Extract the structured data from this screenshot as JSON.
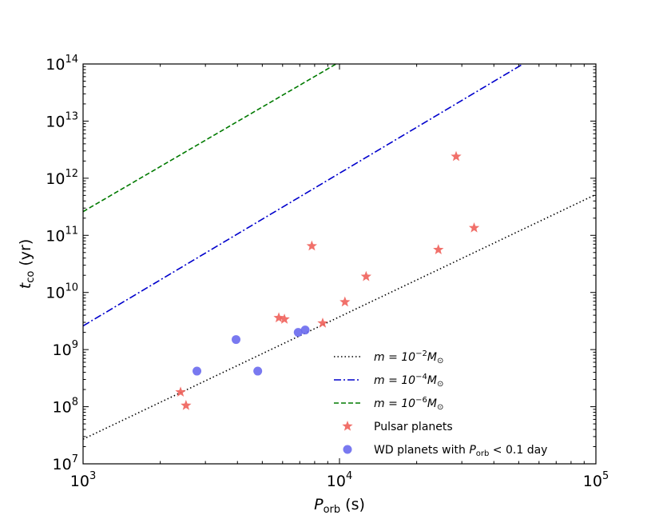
{
  "chart_data": {
    "type": "scatter",
    "title": "",
    "xscale": "log",
    "yscale": "log",
    "xlim": [
      1000,
      100000
    ],
    "ylim": [
      10000000,
      100000000000000
    ],
    "x_ticks": [
      {
        "value": 1000,
        "base": "10",
        "exp": "3"
      },
      {
        "value": 10000,
        "base": "10",
        "exp": "4"
      },
      {
        "value": 100000,
        "base": "10",
        "exp": "5"
      }
    ],
    "y_ticks": [
      {
        "value": 10000000,
        "base": "10",
        "exp": "7"
      },
      {
        "value": 100000000,
        "base": "10",
        "exp": "8"
      },
      {
        "value": 1000000000,
        "base": "10",
        "exp": "9"
      },
      {
        "value": 10000000000,
        "base": "10",
        "exp": "10"
      },
      {
        "value": 100000000000,
        "base": "10",
        "exp": "11"
      },
      {
        "value": 1000000000000,
        "base": "10",
        "exp": "12"
      },
      {
        "value": 10000000000000,
        "base": "10",
        "exp": "13"
      },
      {
        "value": 100000000000000,
        "base": "10",
        "exp": "14"
      }
    ],
    "xlabel": {
      "main": "P",
      "sub": "orb",
      "unit": " (s)"
    },
    "ylabel": {
      "main": "t",
      "sub": "co",
      "unit": " (yr)"
    },
    "legend_position": "lower-right",
    "lines": [
      {
        "name": "m_1e-2",
        "legend_main": "m = 10",
        "legend_exp": "−2",
        "legend_after": "M",
        "color": "#000000",
        "dash": "1.5,3",
        "points": [
          [
            1000,
            27000000
          ],
          [
            100000,
            520000000000
          ]
        ]
      },
      {
        "name": "m_1e-4",
        "legend_main": "m = 10",
        "legend_exp": "−4",
        "legend_after": "M",
        "color": "#0000cc",
        "dash": "9,3,2,3",
        "points": [
          [
            1000,
            2600000000
          ],
          [
            52000,
            100000000000000
          ]
        ]
      },
      {
        "name": "m_1e-6",
        "legend_main": "m = 10",
        "legend_exp": "−6",
        "legend_after": "M",
        "color": "#007a00",
        "dash": "6,3",
        "points": [
          [
            1000,
            260000000000
          ],
          [
            9700,
            100000000000000
          ]
        ]
      }
    ],
    "scatter": [
      {
        "name": "pulsar-planets",
        "label": "Pulsar planets",
        "marker": "star",
        "color": "#f0605a",
        "points": [
          [
            2400,
            180000000
          ],
          [
            2520,
            105000000
          ],
          [
            5800,
            3600000000
          ],
          [
            6100,
            3400000000
          ],
          [
            7800,
            65000000000
          ],
          [
            8600,
            2900000000
          ],
          [
            10500,
            6800000000
          ],
          [
            12700,
            19000000000
          ],
          [
            24300,
            56000000000
          ],
          [
            28500,
            2400000000000
          ],
          [
            33500,
            135000000000
          ]
        ]
      },
      {
        "name": "wd-planets",
        "label_pre": "WD planets with ",
        "label_main": "P",
        "label_sub": "orb",
        "label_post": " < 0.1 day",
        "marker": "circle",
        "color": "#6a6aee",
        "points": [
          [
            2780,
            420000000
          ],
          [
            3950,
            1500000000
          ],
          [
            4800,
            420000000
          ],
          [
            6900,
            2000000000
          ],
          [
            7350,
            2200000000
          ]
        ]
      }
    ]
  }
}
